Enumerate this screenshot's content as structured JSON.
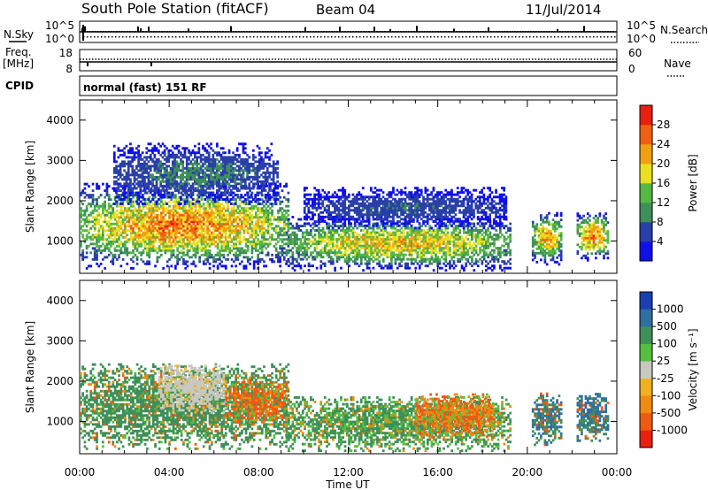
{
  "header": {
    "title": "South Pole Station (fitACF)",
    "beam": "Beam 04",
    "date": "11/Jul/2014"
  },
  "top_panels": {
    "sky_label": "N.Sky",
    "sky_ticks": [
      "10^5",
      "10^0"
    ],
    "search_label": "N.Search",
    "search_ticks": [
      "10^5",
      "10^0"
    ],
    "freq_label_1": "Freq.",
    "freq_label_2": "[MHz]",
    "freq_ticks": [
      "18",
      "8"
    ],
    "nave_label": "Nave",
    "nave_ticks": [
      "60",
      "0"
    ],
    "cpid_label": "CPID",
    "cpid_text": "normal (fast) 151 RF"
  },
  "colors": {
    "power_scale": [
      "#1010e8",
      "#2a3fa8",
      "#3f8f5a",
      "#55b845",
      "#e8e020",
      "#f0a010",
      "#f06010",
      "#e82010"
    ],
    "velocity_scale": [
      "#e82010",
      "#f05a10",
      "#f08a10",
      "#f0b020",
      "#c8c8c0",
      "#55c040",
      "#3f8f5a",
      "#2f6fa0",
      "#1a3fb0"
    ]
  },
  "chart_data": [
    {
      "type": "heatmap",
      "title": "",
      "ylabel": "Slant Range [km]",
      "ylim": [
        200,
        4500
      ],
      "yticks": [
        "4000",
        "3000",
        "2000",
        "1000"
      ],
      "xlabel": "",
      "xlim": [
        "00:00",
        "24:00"
      ],
      "colorbar": {
        "label": "Power [dB]",
        "ticks": [
          "28",
          "24",
          "20",
          "16",
          "12",
          "8",
          "4"
        ],
        "range": [
          0,
          32
        ]
      },
      "regions": [
        {
          "t0": 0.0,
          "t1": 9.3,
          "r0": 300,
          "r1": 2400,
          "peak_value": 26
        },
        {
          "t0": 1.5,
          "t1": 8.8,
          "r0": 1900,
          "r1": 3400,
          "peak_value": 10
        },
        {
          "t0": 9.2,
          "t1": 19.2,
          "r0": 250,
          "r1": 1600,
          "peak_value": 22
        },
        {
          "t0": 10.0,
          "t1": 19.0,
          "r0": 1300,
          "r1": 2300,
          "peak_value": 8
        },
        {
          "t0": 20.2,
          "t1": 21.5,
          "r0": 400,
          "r1": 1700,
          "peak_value": 24
        },
        {
          "t0": 22.2,
          "t1": 23.6,
          "r0": 500,
          "r1": 1700,
          "peak_value": 26
        }
      ]
    },
    {
      "type": "heatmap",
      "title": "",
      "ylabel": "Slant Range [km]",
      "ylim": [
        200,
        4500
      ],
      "yticks": [
        "4000",
        "3000",
        "2000",
        "1000"
      ],
      "xlabel": "Time UT",
      "xticks": [
        "00:00",
        "04:00",
        "08:00",
        "12:00",
        "16:00",
        "20:00",
        "00:00"
      ],
      "xlim": [
        "00:00",
        "24:00"
      ],
      "colorbar": {
        "label": "Velocity [m s⁻¹]",
        "ticks": [
          "1000",
          "500",
          "100",
          "25",
          "-25",
          "-100",
          "-500",
          "-1000"
        ]
      },
      "regions": [
        {
          "t0": 0.0,
          "t1": 9.3,
          "r0": 300,
          "r1": 2400,
          "peak_value": 200
        },
        {
          "t0": 3.5,
          "t1": 6.5,
          "r0": 1200,
          "r1": 2400,
          "peak_value": 20
        },
        {
          "t0": 6.5,
          "t1": 9.2,
          "r0": 900,
          "r1": 2000,
          "peak_value": -150
        },
        {
          "t0": 9.2,
          "t1": 19.2,
          "r0": 250,
          "r1": 1600,
          "peak_value": 150
        },
        {
          "t0": 15.0,
          "t1": 18.5,
          "r0": 600,
          "r1": 1700,
          "peak_value": -120
        },
        {
          "t0": 20.2,
          "t1": 21.5,
          "r0": 400,
          "r1": 1700,
          "peak_value": 600
        },
        {
          "t0": 22.2,
          "t1": 23.6,
          "r0": 500,
          "r1": 1700,
          "peak_value": 700
        }
      ]
    }
  ]
}
